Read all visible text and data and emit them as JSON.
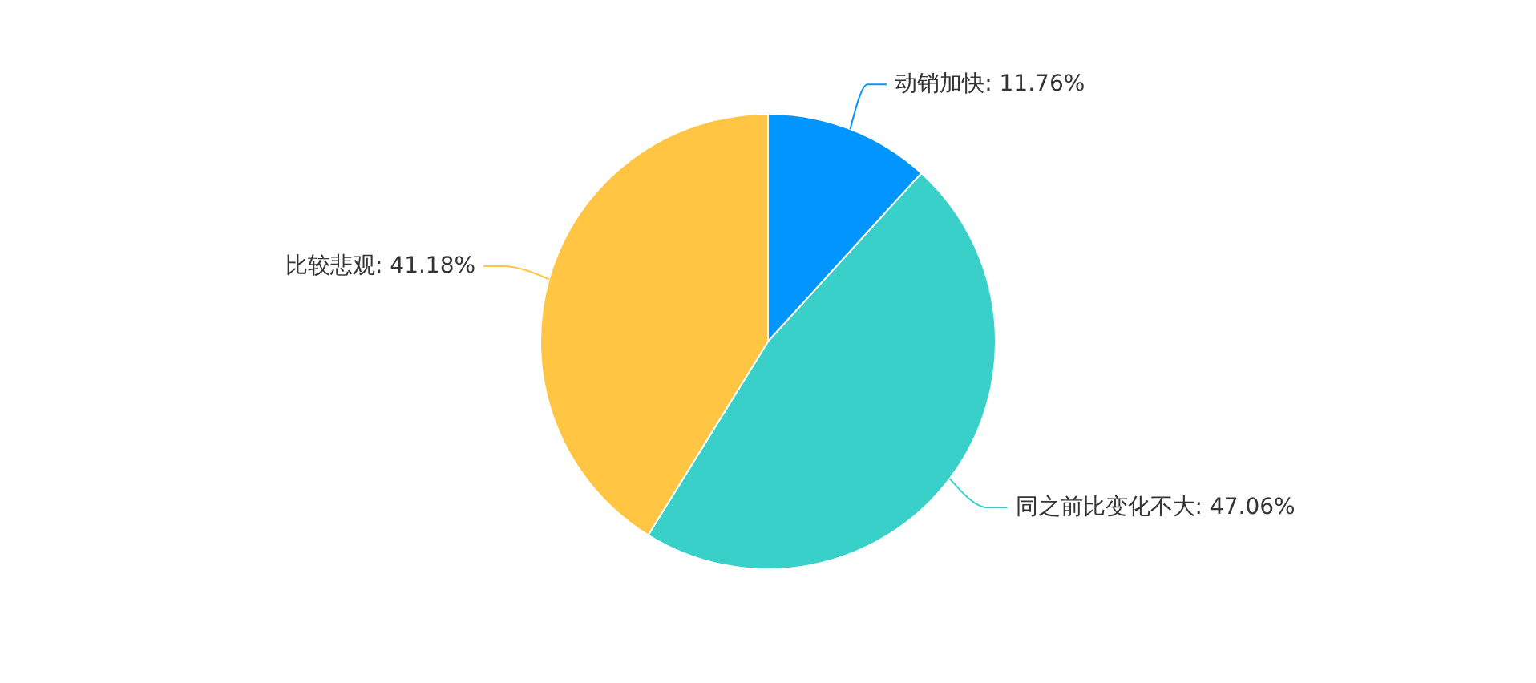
{
  "chart_data": {
    "type": "pie",
    "categories": [
      "动销加快",
      "同之前比变化不大",
      "比较悲观"
    ],
    "values": [
      11.76,
      47.06,
      41.18
    ],
    "colors": [
      "#0196ff",
      "#39d0c9",
      "#ffc543"
    ],
    "value_labels": [
      "11.76%",
      "47.06%",
      "41.18%"
    ]
  }
}
